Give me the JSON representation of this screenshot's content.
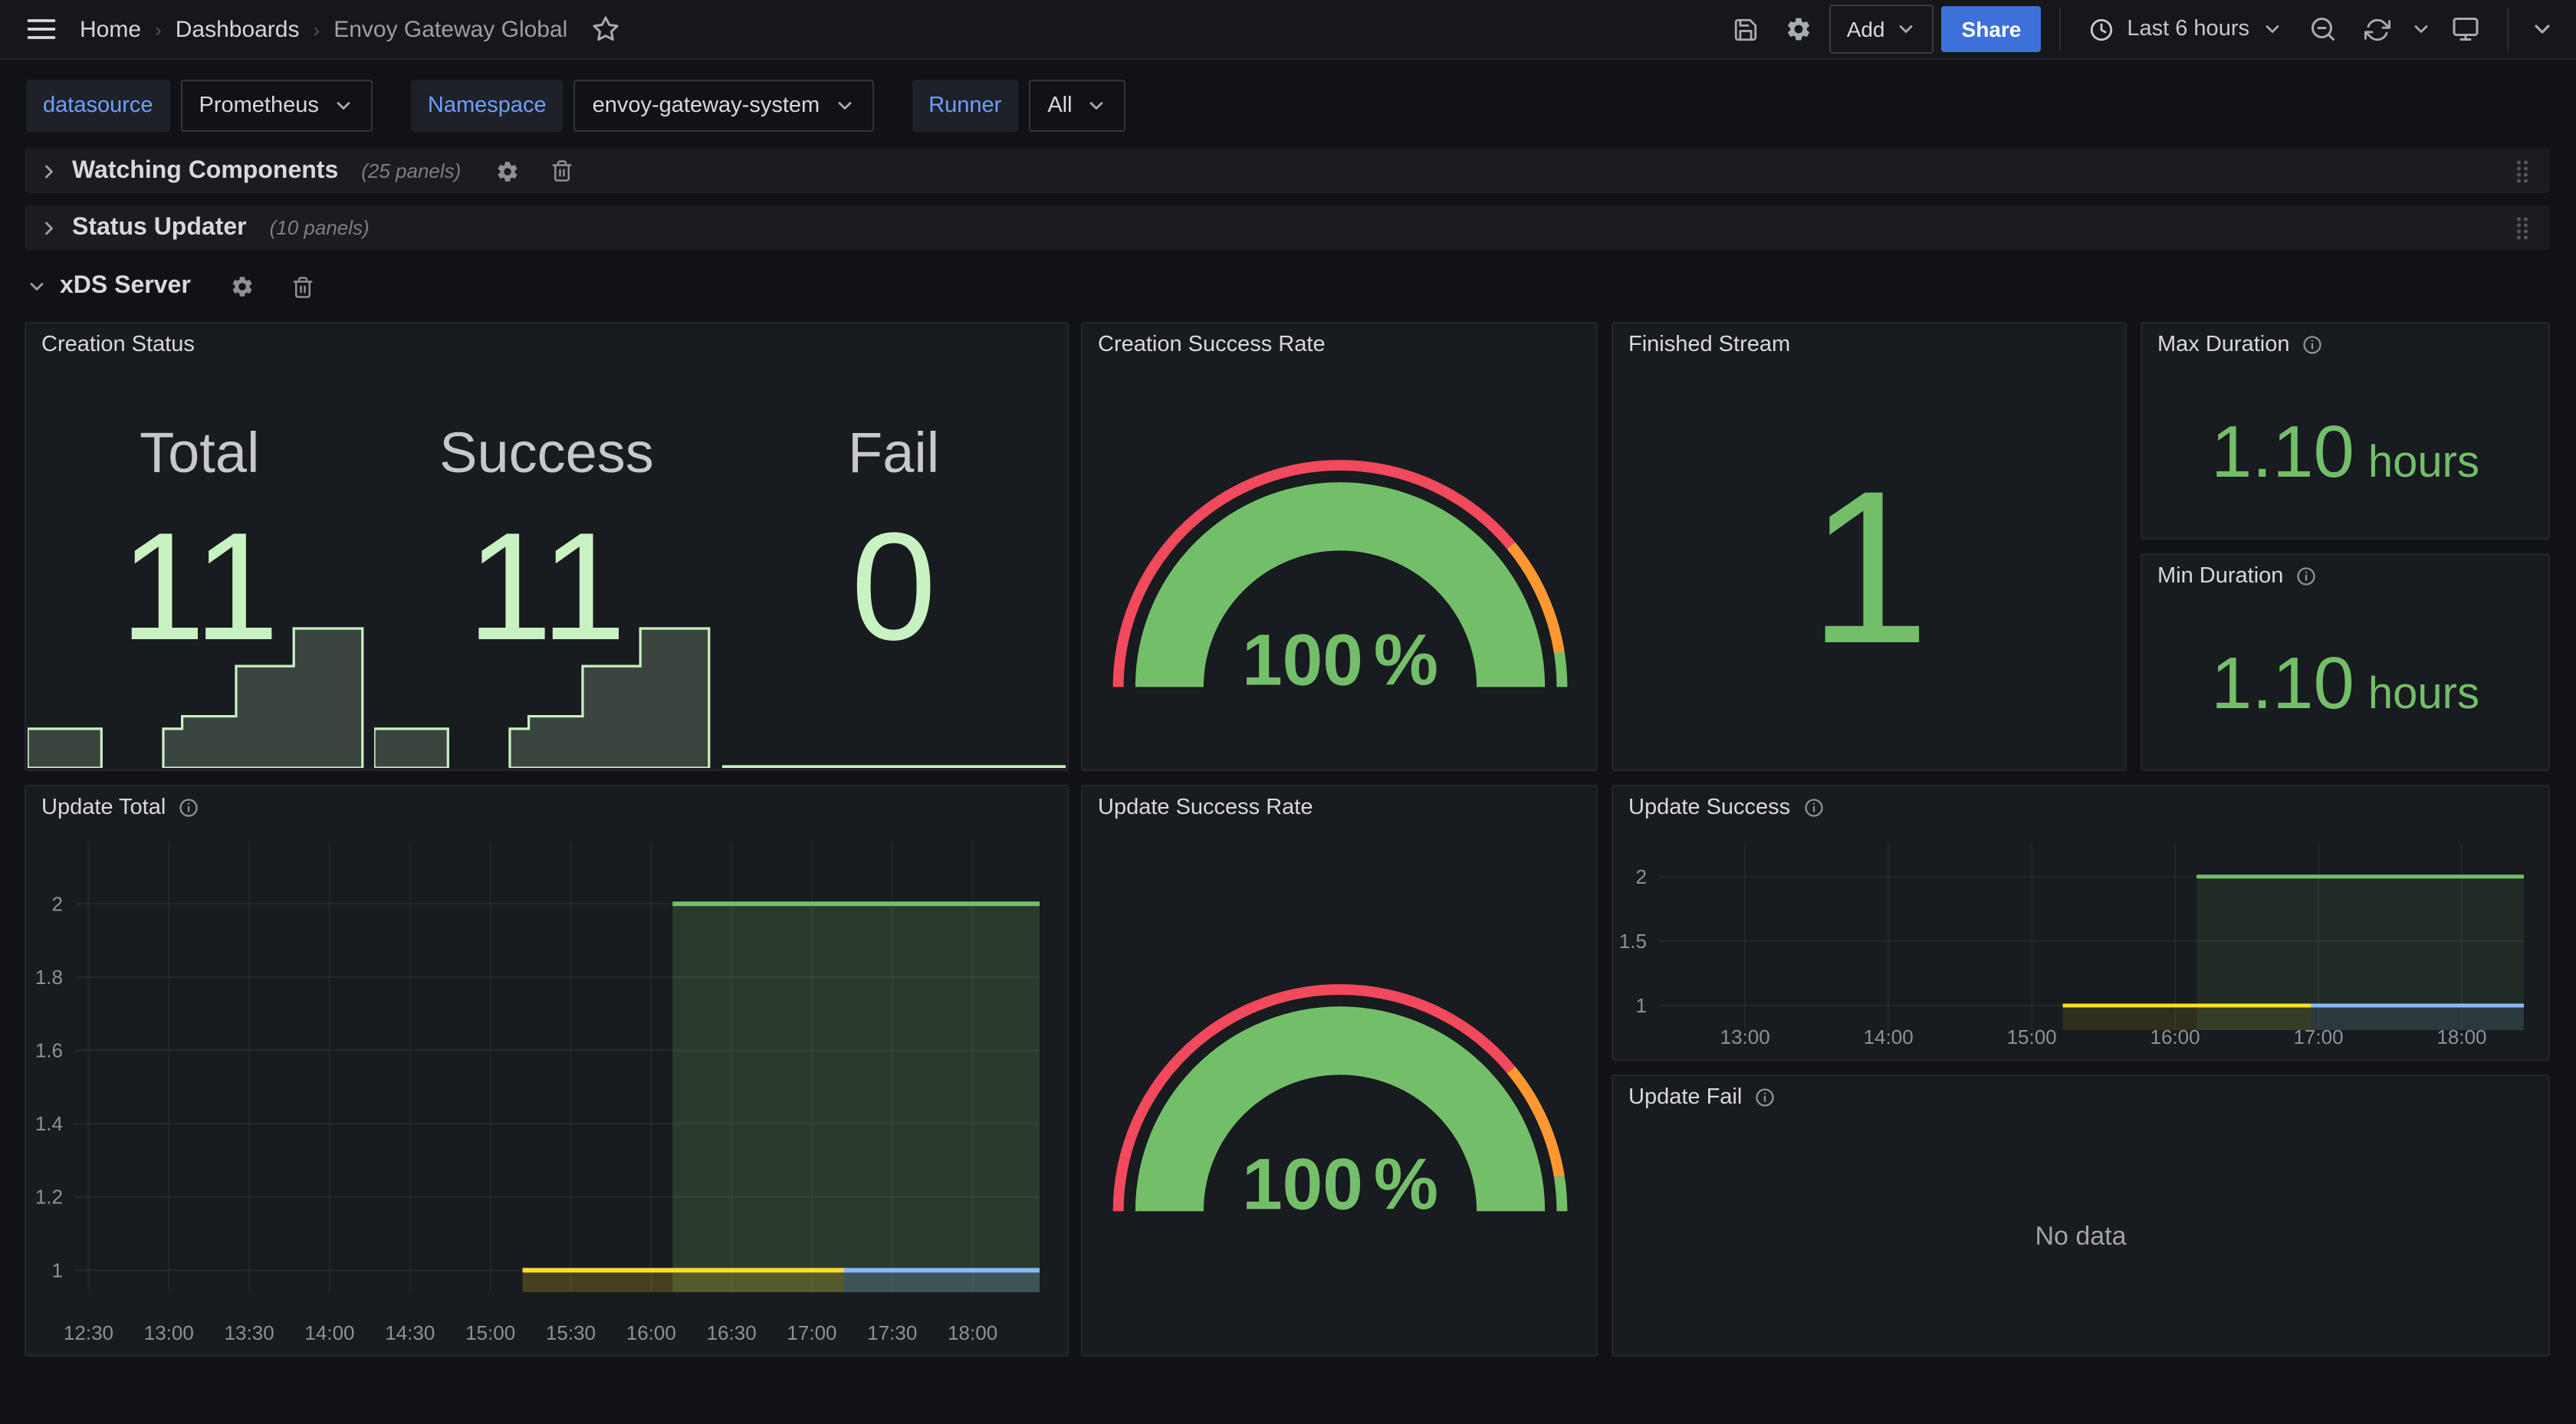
{
  "nav": {
    "breadcrumbs": [
      {
        "label": "Home",
        "current": false
      },
      {
        "label": "Dashboards",
        "current": false
      },
      {
        "label": "Envoy Gateway Global",
        "current": true
      }
    ],
    "add_label": "Add",
    "share_label": "Share",
    "time_range": "Last 6 hours"
  },
  "filters": [
    {
      "label": "datasource",
      "value": "Prometheus"
    },
    {
      "label": "Namespace",
      "value": "envoy-gateway-system"
    },
    {
      "label": "Runner",
      "value": "All"
    }
  ],
  "rows": {
    "watching": {
      "title": "Watching Components",
      "count": "(25 panels)"
    },
    "status": {
      "title": "Status Updater",
      "count": "(10 panels)"
    },
    "xds": {
      "title": "xDS Server"
    }
  },
  "panels": {
    "creation_status": {
      "title": "Creation Status",
      "stats": [
        {
          "label": "Total",
          "value": "11"
        },
        {
          "label": "Success",
          "value": "11"
        },
        {
          "label": "Fail",
          "value": "0"
        }
      ]
    },
    "creation_success_rate": {
      "title": "Creation Success Rate"
    },
    "finished_stream": {
      "title": "Finished Stream",
      "value": "1"
    },
    "max_duration": {
      "title": "Max Duration",
      "value": "1.10",
      "unit": "hours"
    },
    "min_duration": {
      "title": "Min Duration",
      "value": "1.10",
      "unit": "hours"
    },
    "update_total": {
      "title": "Update Total"
    },
    "update_success_rate": {
      "title": "Update Success Rate"
    },
    "update_success": {
      "title": "Update Success"
    },
    "update_fail": {
      "title": "Update Fail",
      "message": "No data"
    }
  },
  "colors": {
    "green": "#73BF69",
    "light_green": "#C8F2C2",
    "yellow": "#FADE2A",
    "blue": "#8AB8FF",
    "red": "#F2495C",
    "orange": "#FF9830",
    "share_blue": "#3D71D9"
  },
  "chart_data": {
    "creation_status_sparklines": {
      "type": "area",
      "max": 11,
      "stroke": "#C8F2C2",
      "fill": "rgba(200,242,194,0.2)",
      "series": [
        {
          "name": "Total",
          "segments": [
            [
              0,
              0.215,
              3
            ],
            [
              0.395,
              0.45,
              3
            ],
            [
              0.45,
              0.607,
              4
            ],
            [
              0.607,
              0.775,
              8
            ],
            [
              0.775,
              0.975,
              11
            ]
          ]
        },
        {
          "name": "Success",
          "segments": [
            [
              0,
              0.215,
              3
            ],
            [
              0.395,
              0.45,
              3
            ],
            [
              0.45,
              0.607,
              4
            ],
            [
              0.607,
              0.775,
              8
            ],
            [
              0.775,
              0.975,
              11
            ]
          ]
        },
        {
          "name": "Fail",
          "segments": [
            [
              0,
              1,
              0
            ]
          ]
        }
      ]
    },
    "creation_success_rate_gauge": {
      "type": "gauge",
      "value": 100,
      "min": 0,
      "max": 100,
      "display": "100",
      "unit": "%",
      "value_color": "#73BF69",
      "thresholds": [
        {
          "to": 78,
          "color": "#F2495C"
        },
        {
          "to": 95,
          "color": "#FF9830"
        },
        {
          "to": 100,
          "color": "#73BF69"
        }
      ]
    },
    "update_success_rate_gauge": {
      "type": "gauge",
      "value": 100,
      "min": 0,
      "max": 100,
      "display": "100",
      "unit": "%",
      "value_color": "#73BF69",
      "thresholds": [
        {
          "to": 78,
          "color": "#F2495C"
        },
        {
          "to": 95,
          "color": "#FF9830"
        },
        {
          "to": 100,
          "color": "#73BF69"
        }
      ]
    },
    "update_total": {
      "type": "line",
      "title": "Update Total",
      "x_range": [
        "12:25",
        "18:25"
      ],
      "x_ticks": [
        "12:30",
        "13:00",
        "13:30",
        "14:00",
        "14:30",
        "15:00",
        "15:30",
        "16:00",
        "16:30",
        "17:00",
        "17:30",
        "18:00"
      ],
      "y_range": [
        0.94,
        2.17
      ],
      "y_ticks": [
        "1",
        "1.2",
        "1.4",
        "1.6",
        "1.8",
        "2"
      ],
      "line_width": 3,
      "series": [
        {
          "name": "series-green",
          "color": "#73BF69",
          "value": 2,
          "from": "16:08",
          "to": "18:25",
          "fill_opacity": 0.2
        },
        {
          "name": "series-yellow",
          "color": "#FADE2A",
          "value": 1,
          "from": "15:12",
          "to": "17:12",
          "fill_opacity": 0.2
        },
        {
          "name": "series-blue",
          "color": "#8AB8FF",
          "value": 1,
          "from": "17:12",
          "to": "18:25",
          "fill_opacity": 0.2
        }
      ]
    },
    "update_success": {
      "type": "line",
      "title": "Update Success",
      "x_range": [
        "12:24",
        "18:26"
      ],
      "x_ticks": [
        "13:00",
        "14:00",
        "15:00",
        "16:00",
        "17:00",
        "18:00"
      ],
      "y_range": [
        0.81,
        2.26
      ],
      "y_ticks": [
        "1",
        "1.5",
        "2"
      ],
      "line_width": 2.5,
      "series": [
        {
          "name": "series-green",
          "color": "#73BF69",
          "value": 2,
          "from": "16:09",
          "to": "18:26",
          "fill_opacity": 0.1
        },
        {
          "name": "series-yellow",
          "color": "#FADE2A",
          "value": 1,
          "from": "15:13",
          "to": "16:57",
          "fill_opacity": 0.1
        },
        {
          "name": "series-blue",
          "color": "#8AB8FF",
          "value": 1,
          "from": "16:57",
          "to": "18:26",
          "fill_opacity": 0.1
        }
      ]
    },
    "update_fail": {
      "type": "line",
      "title": "Update Fail",
      "series": [],
      "message": "No data"
    }
  }
}
